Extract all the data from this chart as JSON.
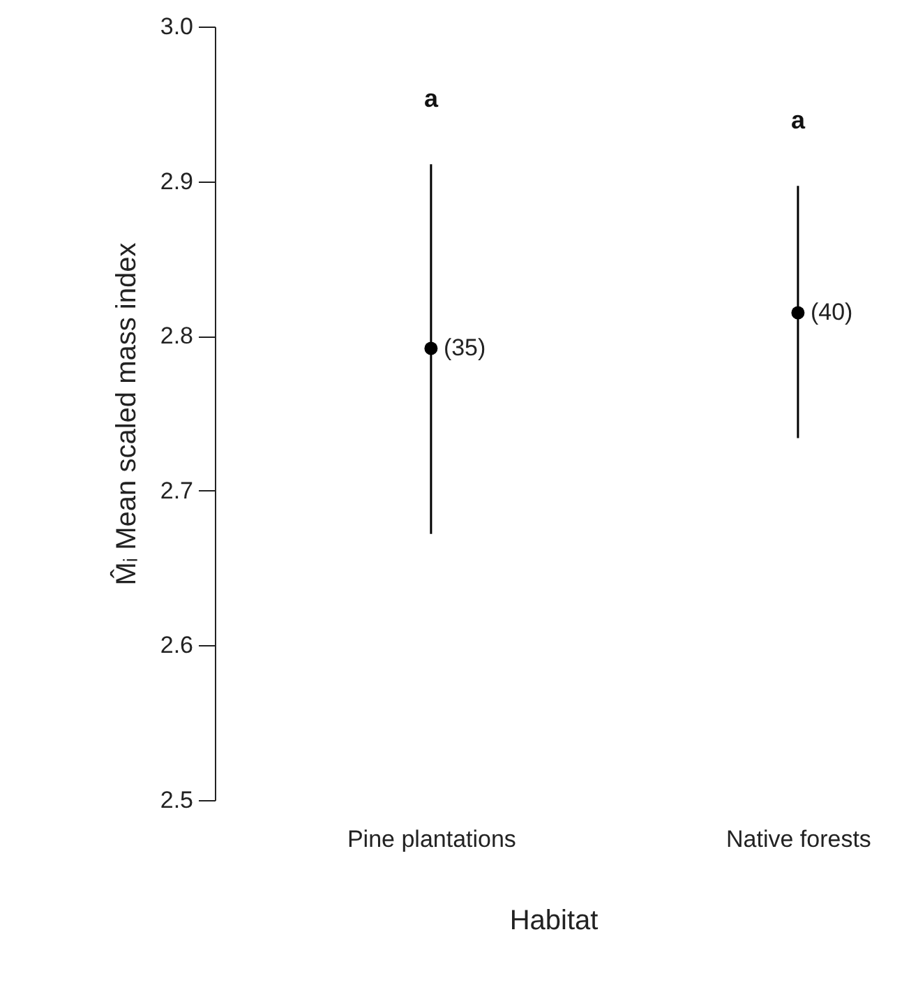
{
  "chart_data": {
    "type": "scatter",
    "xlabel": "Habitat",
    "ylabel": "M̂ᵢ Mean scaled mass index",
    "categories": [
      "Pine plantations",
      "Native forests"
    ],
    "series": [
      {
        "color": "#000000",
        "values": [
          2.792,
          2.815
        ],
        "errors": [
          [
            2.672,
            2.911
          ],
          [
            2.734,
            2.897
          ]
        ]
      }
    ],
    "ylim": [
      2.5,
      3.0
    ],
    "yticks": [
      2.5,
      2.6,
      2.7,
      2.8,
      2.9,
      {
        "value": 3.0,
        "label": "3.0"
      }
    ],
    "marker": "circle",
    "annotations": [
      "a",
      "a",
      {
        "text": "(35)",
        "x": "Pine plantations",
        "y": 2.792
      },
      {
        "text": "(40)",
        "x": "Native forests",
        "y": 2.815
      }
    ]
  }
}
